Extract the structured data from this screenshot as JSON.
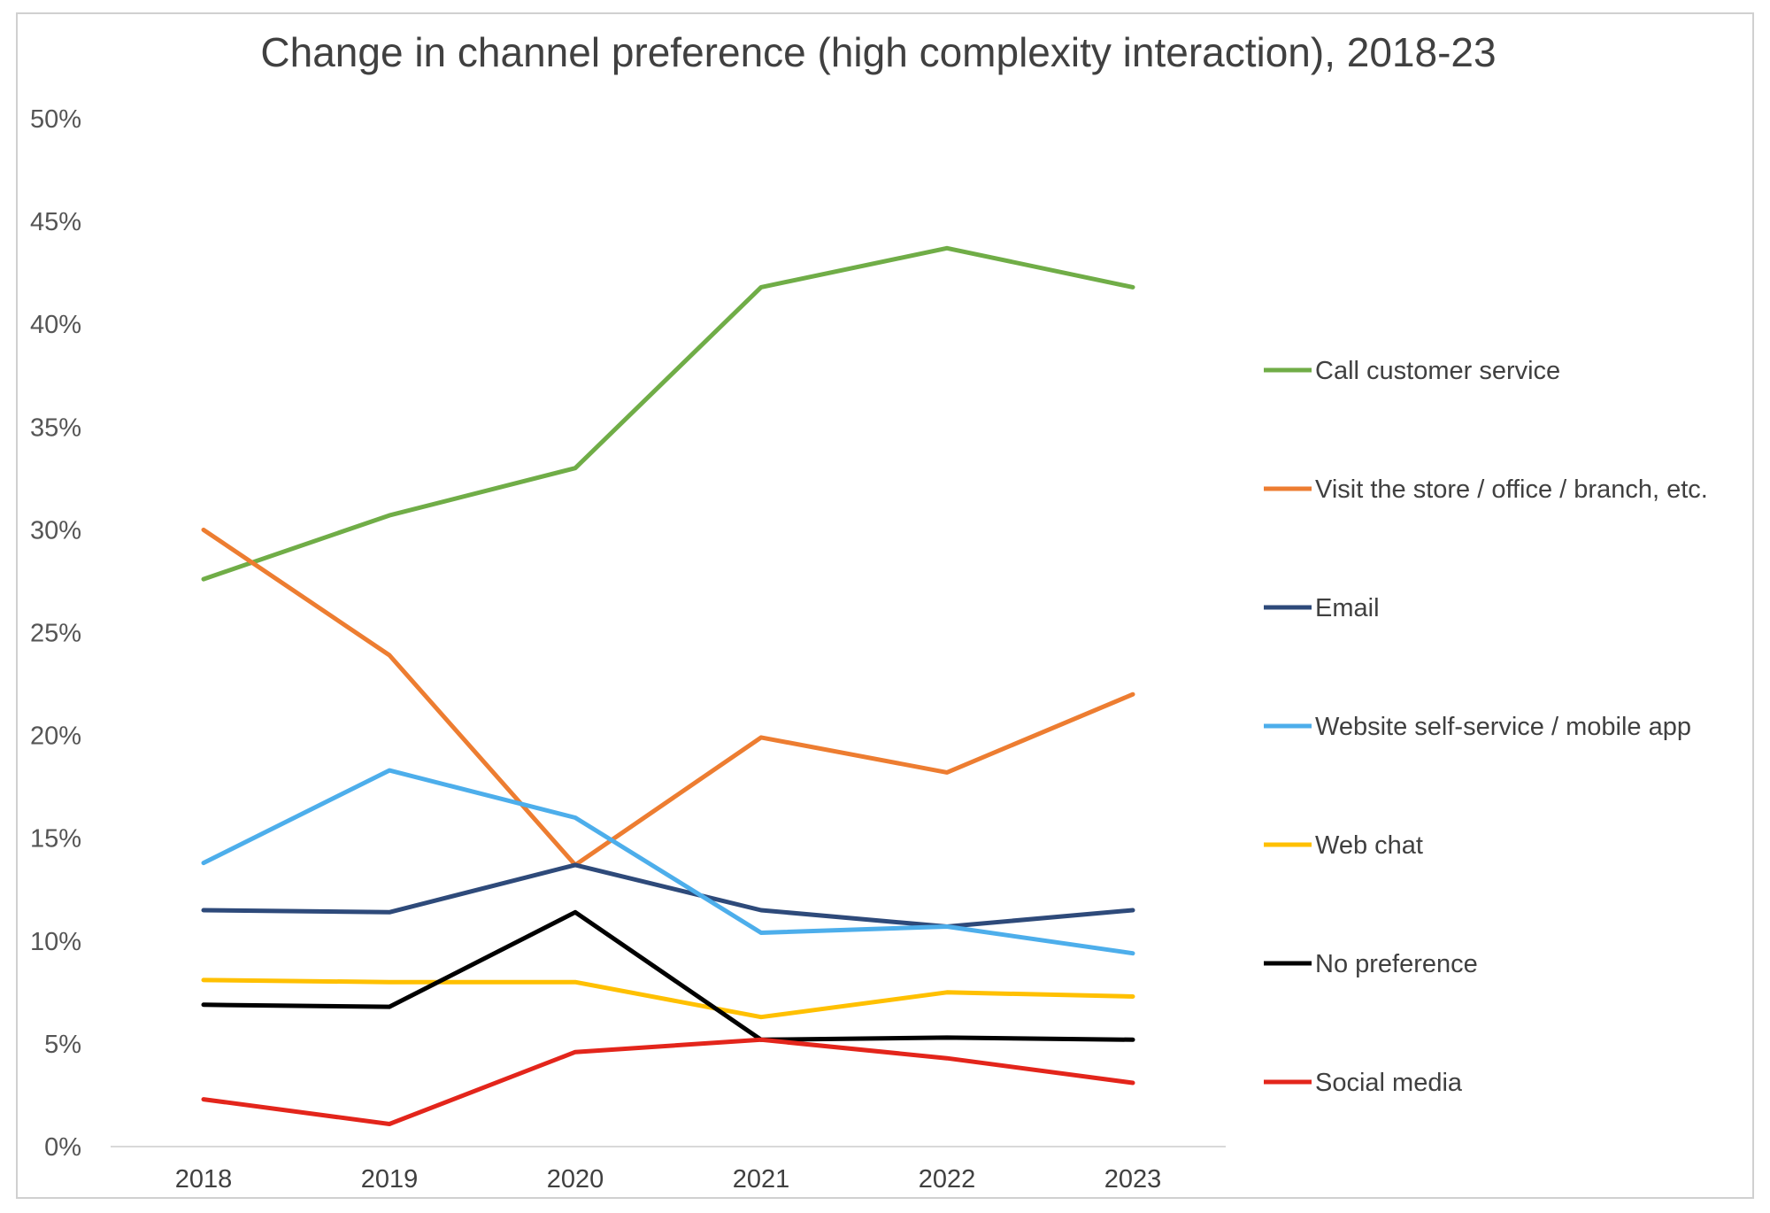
{
  "chart_data": {
    "type": "line",
    "title": "Change in channel preference (high complexity interaction), 2018-23",
    "xlabel": "",
    "ylabel": "",
    "categories": [
      "2018",
      "2019",
      "2020",
      "2021",
      "2022",
      "2023"
    ],
    "ylim": [
      0,
      0.5
    ],
    "yticks": [
      "0%",
      "5%",
      "10%",
      "15%",
      "20%",
      "25%",
      "30%",
      "35%",
      "40%",
      "45%",
      "50%"
    ],
    "grid": false,
    "legend_position": "right",
    "series": [
      {
        "name": "Call customer service",
        "color": "#70AD47",
        "values": [
          0.276,
          0.307,
          0.33,
          0.418,
          0.437,
          0.418
        ]
      },
      {
        "name": "Visit the store / office / branch, etc.",
        "color": "#ED7D31",
        "values": [
          0.3,
          0.239,
          0.137,
          0.199,
          0.182,
          0.22
        ]
      },
      {
        "name": "Email",
        "color": "#2E4A7A",
        "values": [
          0.115,
          0.114,
          0.137,
          0.115,
          0.107,
          0.115
        ]
      },
      {
        "name": "Website self-service / mobile app",
        "color": "#4DAEEB",
        "values": [
          0.138,
          0.183,
          0.16,
          0.104,
          0.107,
          0.094
        ]
      },
      {
        "name": "Web chat",
        "color": "#FFC000",
        "values": [
          0.081,
          0.08,
          0.08,
          0.063,
          0.075,
          0.073
        ]
      },
      {
        "name": "No preference",
        "color": "#000000",
        "values": [
          0.069,
          0.068,
          0.114,
          0.052,
          0.053,
          0.052
        ]
      },
      {
        "name": "Social media",
        "color": "#E3251B",
        "values": [
          0.023,
          0.011,
          0.046,
          0.052,
          0.043,
          0.031
        ]
      }
    ]
  }
}
